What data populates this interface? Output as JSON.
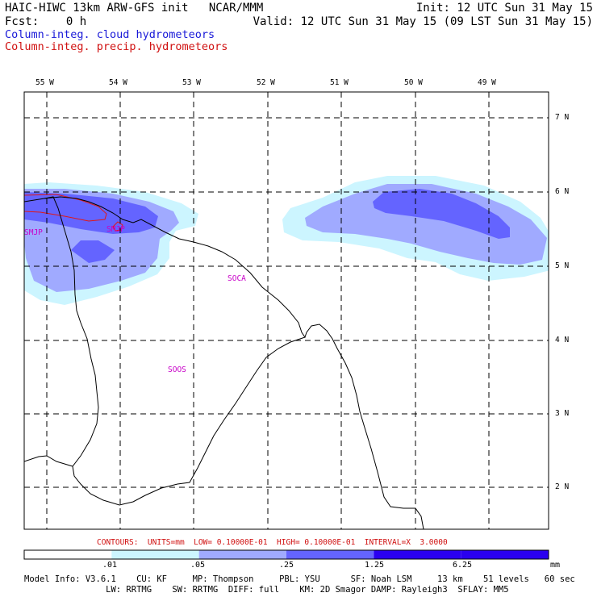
{
  "header": {
    "line1_left": "HAIC-HIWC 13km ARW-GFS init   NCAR/MMM",
    "line1_right": "Init: 12 UTC Sun 31 May 15",
    "line2_left": "Fcst:    0 h",
    "line2_right": "Valid: 12 UTC Sun 31 May 15 (09 LST Sun 31 May 15)"
  },
  "legend": {
    "cloud": "Column-integ. cloud hydrometeors",
    "precip": "Column-integ. precip. hydrometeors"
  },
  "map": {
    "lon_labels": [
      "55 W",
      "54 W",
      "53 W",
      "52 W",
      "51 W",
      "50 W",
      "49 W"
    ],
    "lat_labels": [
      "7 N",
      "6 N",
      "5 N",
      "4 N",
      "3 N",
      "2 N"
    ],
    "stations": [
      "SMJP",
      "SMJP",
      "SOCA",
      "SOOS"
    ],
    "shading_colors": [
      "#ccf5ff",
      "#a0aaff",
      "#6464ff",
      "#2a00f0"
    ],
    "precip_color": "#e01818",
    "coastline_color": "#000000",
    "grid": true
  },
  "contours": "CONTOURS:  UNITS=mm  LOW= 0.10000E-01  HIGH= 0.10000E-01  INTERVAL=X  3.0000",
  "colorbar": {
    "labels": [
      ".01",
      ".05",
      ".25",
      "1.25",
      "6.25"
    ],
    "units": "mm",
    "colors": [
      "#ffffff",
      "#ccf5ff",
      "#a0aaff",
      "#6464ff",
      "#2a00f0"
    ]
  },
  "model_info": {
    "line1": "Model Info: V3.6.1    CU: KF     MP: Thompson     PBL: YSU      SF: Noah LSM     13 km    51 levels   60 sec",
    "line2": "                LW: RRTMG    SW: RRTMG  DIFF: full    KM: 2D Smagor DAMP: Rayleigh3  SFLAY: MM5"
  }
}
